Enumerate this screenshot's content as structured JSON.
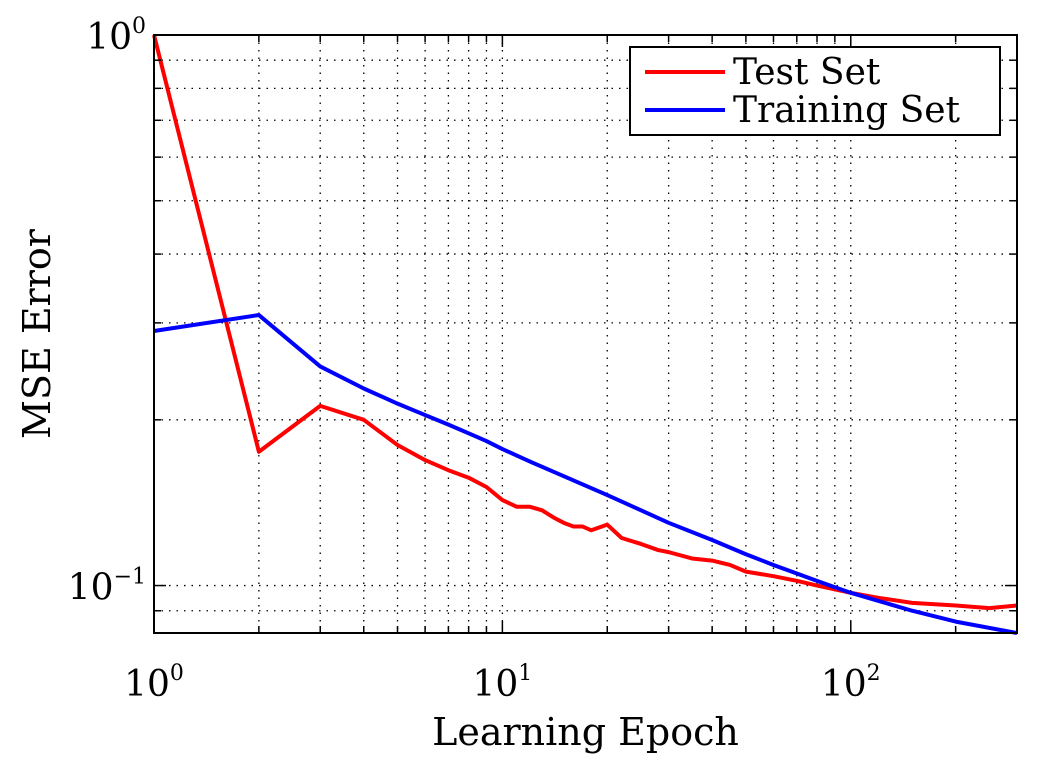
{
  "chart_data": {
    "type": "line",
    "title": "",
    "xlabel": "Learning Epoch",
    "ylabel": "MSE Error",
    "x_scale": "log",
    "y_scale": "log",
    "xlim": [
      1,
      300
    ],
    "ylim": [
      0.082,
      1
    ],
    "grid": true,
    "legend_position": "top-right",
    "x_tick_labels": [
      {
        "value": 1,
        "base": "10",
        "exp": "0"
      },
      {
        "value": 10,
        "base": "10",
        "exp": "1"
      },
      {
        "value": 100,
        "base": "10",
        "exp": "2"
      }
    ],
    "y_tick_labels": [
      {
        "value": 1,
        "base": "10",
        "exp": "0"
      },
      {
        "value": 0.1,
        "base": "10",
        "exp": "−1"
      }
    ],
    "series": [
      {
        "name": "Test Set",
        "color": "#ff0000",
        "points": [
          [
            1,
            1.0
          ],
          [
            2,
            0.175
          ],
          [
            3,
            0.212
          ],
          [
            4,
            0.2
          ],
          [
            5,
            0.18
          ],
          [
            6,
            0.169
          ],
          [
            7,
            0.162
          ],
          [
            8,
            0.157
          ],
          [
            9,
            0.151
          ],
          [
            10,
            0.143
          ],
          [
            11,
            0.139
          ],
          [
            12,
            0.139
          ],
          [
            13,
            0.137
          ],
          [
            14,
            0.133
          ],
          [
            15,
            0.13
          ],
          [
            16,
            0.128
          ],
          [
            17,
            0.128
          ],
          [
            18,
            0.126
          ],
          [
            20,
            0.129
          ],
          [
            22,
            0.122
          ],
          [
            25,
            0.119
          ],
          [
            28,
            0.116
          ],
          [
            30,
            0.115
          ],
          [
            35,
            0.112
          ],
          [
            40,
            0.111
          ],
          [
            45,
            0.109
          ],
          [
            50,
            0.106
          ],
          [
            60,
            0.104
          ],
          [
            70,
            0.102
          ],
          [
            80,
            0.1
          ],
          [
            100,
            0.097
          ],
          [
            120,
            0.095
          ],
          [
            150,
            0.093
          ],
          [
            200,
            0.092
          ],
          [
            250,
            0.091
          ],
          [
            300,
            0.092
          ]
        ]
      },
      {
        "name": "Training Set",
        "color": "#0000ff",
        "points": [
          [
            1,
            0.29
          ],
          [
            2,
            0.31
          ],
          [
            3,
            0.25
          ],
          [
            4,
            0.228
          ],
          [
            5,
            0.214
          ],
          [
            6,
            0.204
          ],
          [
            7,
            0.196
          ],
          [
            8,
            0.189
          ],
          [
            9,
            0.183
          ],
          [
            10,
            0.177
          ],
          [
            12,
            0.168
          ],
          [
            15,
            0.158
          ],
          [
            20,
            0.146
          ],
          [
            25,
            0.137
          ],
          [
            30,
            0.13
          ],
          [
            40,
            0.121
          ],
          [
            50,
            0.114
          ],
          [
            60,
            0.109
          ],
          [
            80,
            0.102
          ],
          [
            100,
            0.097
          ],
          [
            150,
            0.09
          ],
          [
            200,
            0.086
          ],
          [
            300,
            0.082
          ]
        ]
      }
    ]
  }
}
